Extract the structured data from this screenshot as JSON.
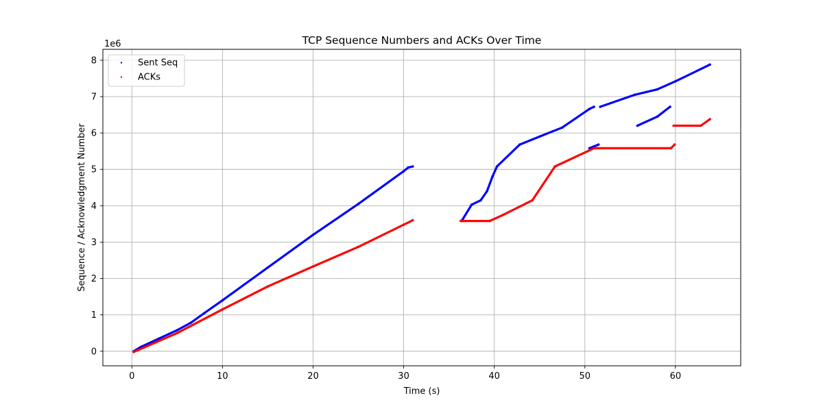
{
  "chart_data": {
    "type": "scatter",
    "title": "TCP Sequence Numbers and ACKs Over Time",
    "xlabel": "Time (s)",
    "ylabel": "Sequence / Acknowledgment Number",
    "y_offset_label": "1e6",
    "xlim": [
      -3.2,
      67.2
    ],
    "ylim": [
      -400000,
      8300000
    ],
    "x_ticks": [
      0,
      10,
      20,
      30,
      40,
      50,
      60
    ],
    "x_tick_labels": [
      "0",
      "10",
      "20",
      "30",
      "40",
      "50",
      "60"
    ],
    "y_ticks": [
      0,
      1000000,
      2000000,
      3000000,
      4000000,
      5000000,
      6000000,
      7000000,
      8000000
    ],
    "y_tick_labels": [
      "0",
      "1",
      "2",
      "3",
      "4",
      "5",
      "6",
      "7",
      "8"
    ],
    "grid": true,
    "legend_position": "top-left",
    "series": [
      {
        "name": "Sent Seq",
        "color": "#0000ff",
        "segments": [
          [
            [
              0.2,
              0
            ],
            [
              1,
              120000
            ],
            [
              3,
              350000
            ],
            [
              5,
              580000
            ],
            [
              6.5,
              780000
            ],
            [
              8,
              1050000
            ],
            [
              10,
              1400000
            ],
            [
              15,
              2300000
            ],
            [
              20,
              3200000
            ],
            [
              25,
              4050000
            ],
            [
              30,
              4950000
            ],
            [
              30.5,
              5050000
            ],
            [
              31,
              5080000
            ]
          ],
          [
            [
              36.5,
              3620000
            ],
            [
              37.5,
              4030000
            ],
            [
              38.5,
              4150000
            ],
            [
              39.2,
              4400000
            ],
            [
              39.8,
              4800000
            ],
            [
              40.3,
              5080000
            ],
            [
              42.8,
              5680000
            ],
            [
              45,
              5900000
            ],
            [
              47.5,
              6150000
            ],
            [
              50.5,
              6660000
            ],
            [
              51,
              6720000
            ]
          ],
          [
            [
              51.7,
              6720000
            ],
            [
              55.5,
              7050000
            ],
            [
              58,
              7200000
            ],
            [
              60,
              7420000
            ],
            [
              63.8,
              7880000
            ]
          ],
          [
            [
              50.5,
              5580000
            ],
            [
              51.5,
              5680000
            ]
          ],
          [
            [
              55.8,
              6200000
            ],
            [
              58,
              6450000
            ],
            [
              59.4,
              6720000
            ]
          ]
        ]
      },
      {
        "name": "ACKs",
        "color": "#ff0000",
        "segments": [
          [
            [
              0.2,
              -20000
            ],
            [
              5,
              500000
            ],
            [
              10,
              1150000
            ],
            [
              15,
              1780000
            ],
            [
              20,
              2330000
            ],
            [
              25,
              2870000
            ],
            [
              30,
              3480000
            ],
            [
              31,
              3600000
            ]
          ],
          [
            [
              36.3,
              3580000
            ],
            [
              39.5,
              3580000
            ],
            [
              41,
              3750000
            ],
            [
              44.2,
              4150000
            ],
            [
              46.7,
              5080000
            ],
            [
              51,
              5580000
            ],
            [
              59.5,
              5580000
            ],
            [
              59.9,
              5680000
            ]
          ],
          [
            [
              59.8,
              6200000
            ],
            [
              62.8,
              6200000
            ],
            [
              63.8,
              6380000
            ]
          ]
        ]
      }
    ]
  }
}
